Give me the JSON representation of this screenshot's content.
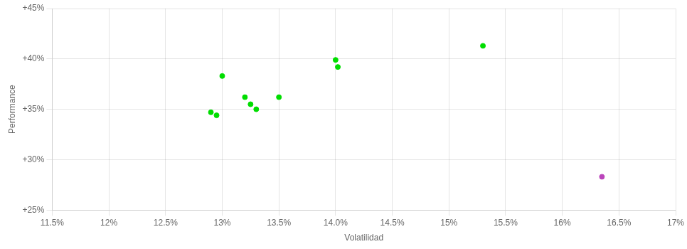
{
  "chart_data": {
    "type": "scatter",
    "xlabel": "Volatilidad",
    "ylabel": "Performance",
    "xlim": [
      0.115,
      0.17
    ],
    "ylim": [
      0.25,
      0.45
    ],
    "xticks": [
      {
        "value": 0.115,
        "label": "11.5%"
      },
      {
        "value": 0.12,
        "label": "12%"
      },
      {
        "value": 0.125,
        "label": "12.5%"
      },
      {
        "value": 0.13,
        "label": "13%"
      },
      {
        "value": 0.135,
        "label": "13.5%"
      },
      {
        "value": 0.14,
        "label": "14.0%"
      },
      {
        "value": 0.145,
        "label": "14.5%"
      },
      {
        "value": 0.15,
        "label": "15%"
      },
      {
        "value": 0.155,
        "label": "15.5%"
      },
      {
        "value": 0.16,
        "label": "16%"
      },
      {
        "value": 0.165,
        "label": "16.5%"
      },
      {
        "value": 0.17,
        "label": "17%"
      }
    ],
    "yticks": [
      {
        "value": 0.25,
        "label": "+25%"
      },
      {
        "value": 0.3,
        "label": "+30%"
      },
      {
        "value": 0.35,
        "label": "+35%"
      },
      {
        "value": 0.4,
        "label": "+40%"
      },
      {
        "value": 0.45,
        "label": "+45%"
      }
    ],
    "grid": true,
    "series": [
      {
        "color": "#00dd00",
        "x": [
          0.129,
          0.1295,
          0.13,
          0.132,
          0.1325,
          0.133,
          0.135,
          0.14,
          0.1402,
          0.153
        ],
        "values": [
          0.347,
          0.344,
          0.383,
          0.362,
          0.355,
          0.35,
          0.362,
          0.399,
          0.392,
          0.413
        ]
      },
      {
        "color": "#bb44bb",
        "x": [
          0.1635
        ],
        "values": [
          0.283
        ]
      }
    ]
  }
}
